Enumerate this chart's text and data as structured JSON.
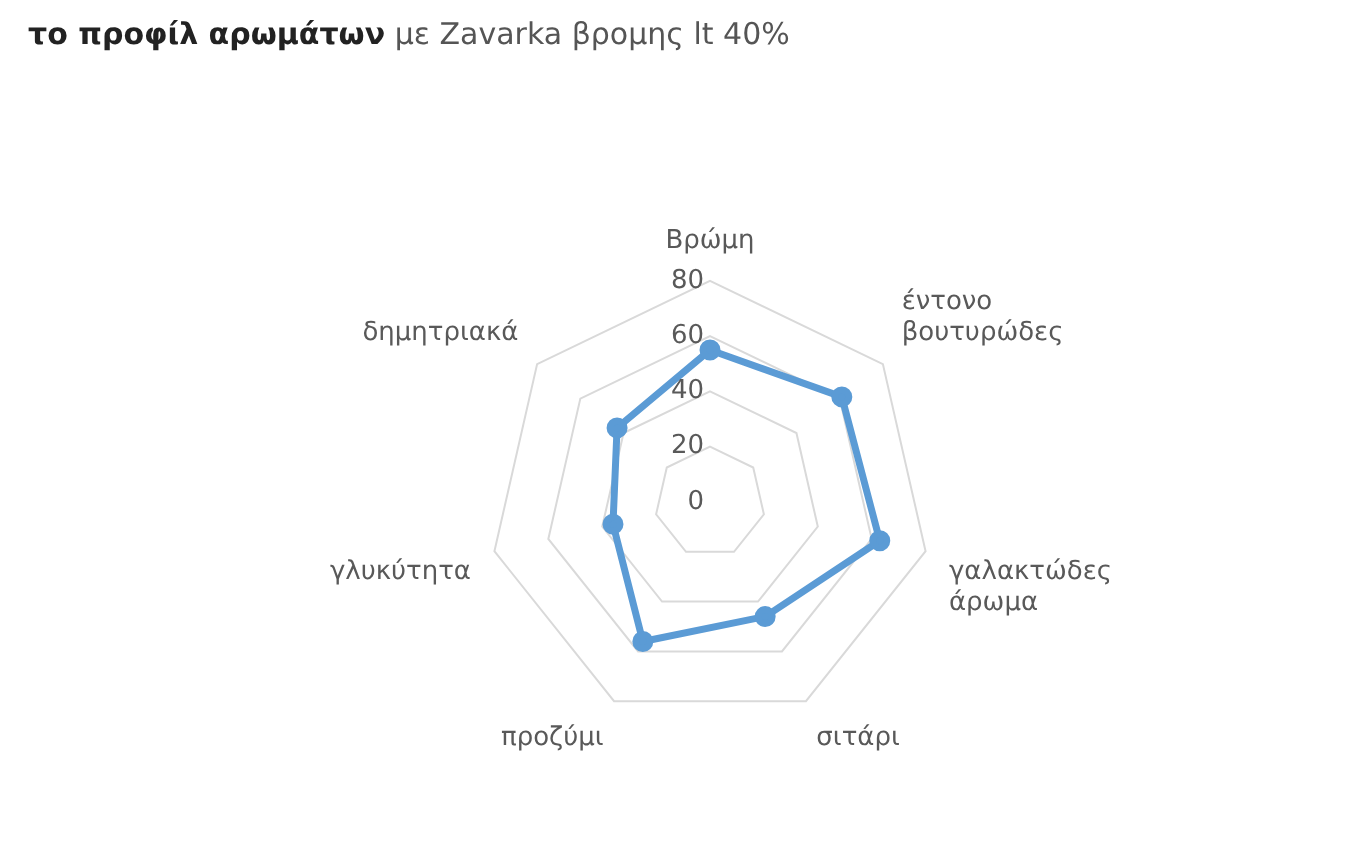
{
  "chart_data": {
    "type": "radar",
    "title": "το προφίλ αρωμάτων με Zavarka βρομης lt 40%",
    "categories": [
      "Βρώμη",
      "έντονο βουτυρώδες",
      "γαλακτώδες άρωμα",
      "σιτάρι",
      "προζύμι",
      "γλυκύτητα",
      "δημητριακά"
    ],
    "series": [
      {
        "color": "#5b9bd5",
        "values": [
          55,
          61,
          63,
          46,
          56,
          36,
          43
        ]
      }
    ],
    "ylim": [
      0,
      80
    ],
    "yticks": [
      0,
      20,
      40,
      60,
      80
    ],
    "grid": true,
    "marker": "circle",
    "line_style": "solid"
  }
}
